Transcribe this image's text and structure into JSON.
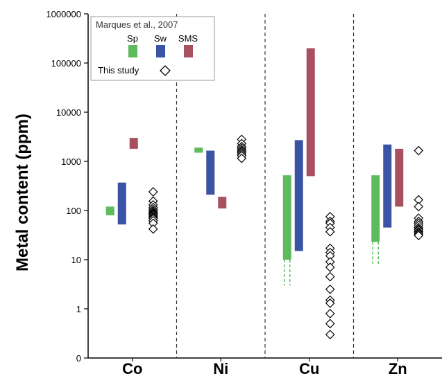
{
  "chart_data": {
    "type": "range-bar-scatter",
    "ylabel": "Metal content (ppm)",
    "yscale": "log",
    "ylim": [
      0.1,
      1000000
    ],
    "yticks": [
      {
        "value": 1000000,
        "label": "1000000"
      },
      {
        "value": 100000,
        "label": "100000"
      },
      {
        "value": 10000,
        "label": "10000"
      },
      {
        "value": 1000,
        "label": "1000"
      },
      {
        "value": 100,
        "label": "100"
      },
      {
        "value": 10,
        "label": "10"
      },
      {
        "value": 1,
        "label": "1"
      },
      {
        "value": 0.1,
        "label": "0"
      }
    ],
    "categories": [
      "Co",
      "Ni",
      "Cu",
      "Zn"
    ],
    "grid": false,
    "legend": {
      "placement": "top-left",
      "reference": "Marques et al., 2007",
      "study_label": "This study"
    },
    "series": [
      {
        "name": "Sp",
        "color": "#5dbb5d",
        "ranges": [
          [
            80,
            120
          ],
          [
            1500,
            1900
          ],
          [
            10,
            520
          ],
          [
            23,
            520
          ]
        ],
        "extensions": [
          null,
          null,
          [
            3,
            10
          ],
          [
            8,
            23
          ]
        ]
      },
      {
        "name": "Sw",
        "color": "#3a53a4",
        "ranges": [
          [
            52,
            370
          ],
          [
            210,
            1650
          ],
          [
            15,
            2700
          ],
          [
            45,
            2200
          ]
        ],
        "extensions": [
          null,
          null,
          null,
          null
        ]
      },
      {
        "name": "SMS",
        "color": "#a8505f",
        "ranges": [
          [
            1800,
            3000
          ],
          [
            110,
            190
          ],
          [
            500,
            200000
          ],
          [
            120,
            1800
          ]
        ],
        "extensions": [
          null,
          null,
          null,
          null
        ]
      },
      {
        "name": "This study",
        "marker": "diamond",
        "points": [
          [
            240,
            155,
            130,
            115,
            105,
            98,
            92,
            88,
            84,
            80,
            75,
            72,
            68,
            62,
            55,
            42
          ],
          [
            2800,
            2300,
            2000,
            1850,
            1700,
            1600,
            1500,
            1400,
            1300,
            1150
          ],
          [
            75,
            60,
            55,
            45,
            37,
            17,
            14,
            12,
            9,
            7,
            4.5,
            2.5,
            1.5,
            1.3,
            0.8,
            0.5,
            0.3
          ],
          [
            1650,
            165,
            120,
            70,
            60,
            55,
            50,
            45,
            42,
            40,
            37,
            35,
            33,
            31
          ]
        ]
      }
    ]
  }
}
